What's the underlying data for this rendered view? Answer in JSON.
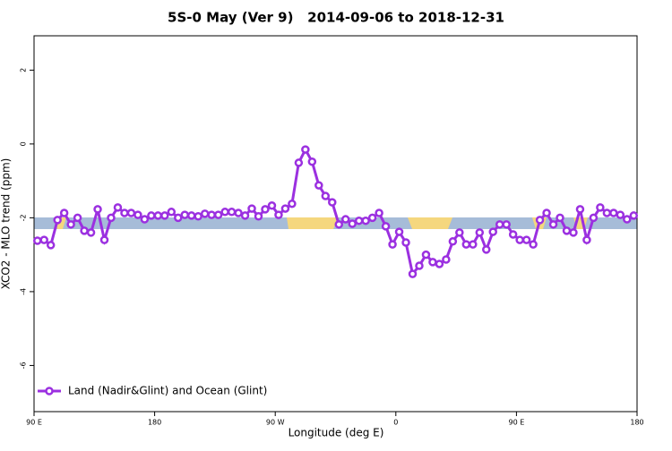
{
  "chart_data": {
    "type": "line",
    "title": "5S-0 May (Ver 9)   2014-09-06 to 2018-12-31",
    "x_label": "Longitude (deg E)",
    "y_label": "XCO2 - MLO trend (ppm)",
    "xlim": [
      90,
      540
    ],
    "ylim": [
      -7.25,
      2.93
    ],
    "xticks": [
      {
        "value": 90,
        "label": "90 E"
      },
      180,
      {
        "value": 270,
        "label": "90 W"
      },
      {
        "value": 360,
        "label": "0"
      },
      {
        "value": 450,
        "label": "90 E"
      },
      {
        "value": 540,
        "label": "180"
      }
    ],
    "yticks": [
      2,
      0,
      -2,
      -4,
      -6
    ],
    "legend": "bottom-left",
    "x": [
      92.5,
      97.5,
      102.5,
      107.5,
      112.5,
      117.5,
      122.5,
      127.5,
      132.5,
      137.5,
      142.5,
      147.5,
      152.5,
      157.5,
      162.5,
      167.5,
      172.5,
      177.5,
      182.5,
      187.5,
      192.5,
      197.5,
      202.5,
      207.5,
      212.5,
      217.5,
      222.5,
      227.5,
      232.5,
      237.5,
      242.5,
      247.5,
      252.5,
      257.5,
      262.5,
      267.5,
      272.5,
      277.5,
      282.5,
      287.5,
      292.5,
      297.5,
      302.5,
      307.5,
      312.5,
      317.5,
      322.5,
      327.5,
      332.5,
      337.5,
      342.5,
      347.5,
      352.5,
      357.5,
      362.5,
      367.5,
      372.5,
      377.5,
      382.5,
      387.5,
      392.5,
      397.5,
      402.5,
      407.5,
      412.5,
      417.5,
      422.5,
      427.5,
      432.5,
      437.5,
      442.5,
      447.5,
      452.5,
      457.5,
      462.5,
      467.5,
      472.5,
      477.5,
      482.5,
      487.5,
      492.5,
      497.5,
      502.5,
      507.5,
      512.5,
      517.5,
      522.5,
      527.5,
      532.5,
      537.5
    ],
    "series": [
      {
        "name": "Land (Nadir&Glint) and Ocean (Glint)",
        "color": "#9b30e0",
        "values": [
          -2.62,
          -2.6,
          -2.74,
          -2.06,
          -1.87,
          -2.18,
          -2.0,
          -2.35,
          -2.4,
          -1.77,
          -2.6,
          -2.0,
          -1.72,
          -1.87,
          -1.87,
          -1.92,
          -2.04,
          -1.94,
          -1.94,
          -1.94,
          -1.84,
          -2.0,
          -1.92,
          -1.94,
          -1.96,
          -1.89,
          -1.92,
          -1.92,
          -1.84,
          -1.84,
          -1.87,
          -1.94,
          -1.75,
          -1.96,
          -1.77,
          -1.67,
          -1.92,
          -1.75,
          -1.62,
          -0.51,
          -0.15,
          -0.48,
          -1.12,
          -1.41,
          -1.58,
          -2.18,
          -2.04,
          -2.16,
          -2.08,
          -2.08,
          -2.0,
          -1.87,
          -2.23,
          -2.72,
          -2.38,
          -2.67,
          -3.52,
          -3.3,
          -3.0,
          -3.2,
          -3.25,
          -3.13,
          -2.64,
          -2.4,
          -2.72,
          -2.72,
          -2.4,
          -2.86,
          -2.38,
          -2.18,
          -2.18,
          -2.45,
          -2.6,
          -2.6,
          -2.72,
          -2.06,
          -1.87,
          -2.18,
          -2.0,
          -2.35,
          -2.4,
          -1.77,
          -2.6,
          -2.0,
          -1.72,
          -1.87,
          -1.87,
          -1.92,
          -2.04,
          -1.94
        ]
      }
    ]
  }
}
